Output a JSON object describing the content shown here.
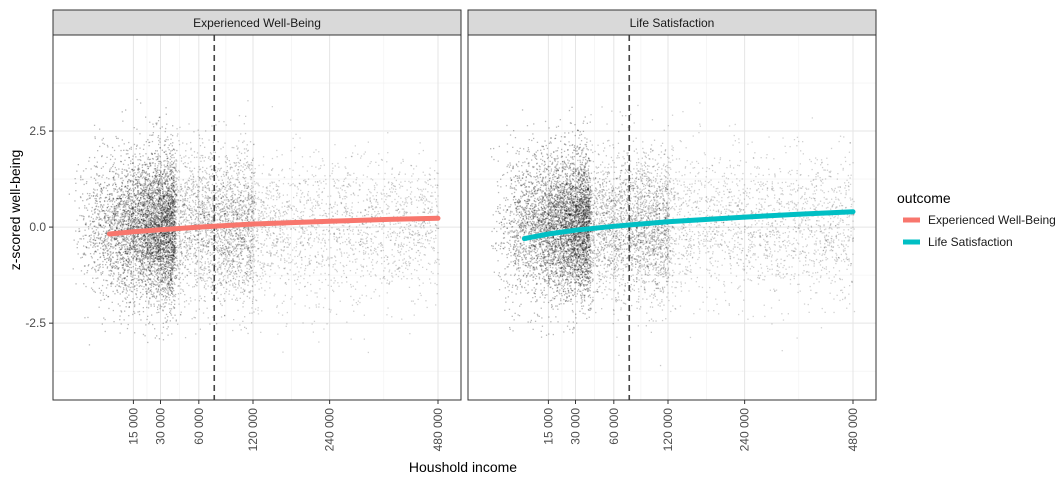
{
  "chart_data": {
    "type": "scatter",
    "facets": [
      "Experienced Well-Being",
      "Life Satisfaction"
    ],
    "xlabel": "Houshold income",
    "ylabel": "z-scored well-being",
    "x_ticks": [
      15000,
      30000,
      60000,
      120000,
      240000,
      480000
    ],
    "x_tick_labels": [
      "15 000",
      "30 000",
      "60 000",
      "120 000",
      "240 000",
      "480 000"
    ],
    "x_scale": "sqrt",
    "xlim": [
      0,
      510000
    ],
    "y_ticks": [
      -2.5,
      0.0,
      2.5
    ],
    "y_tick_labels": [
      "-2.5",
      "0.0",
      "2.5"
    ],
    "ylim": [
      -4.5,
      5
    ],
    "reference_line_x": 75000,
    "grid": true,
    "legend": {
      "title": "outcome",
      "placement": "right"
    },
    "series": [
      {
        "name": "Experienced Well-Being",
        "color": "#F8766D",
        "x": [
          6000,
          15000,
          30000,
          60000,
          120000,
          240000,
          360000,
          480000
        ],
        "y": [
          -0.18,
          -0.12,
          -0.07,
          0.0,
          0.08,
          0.15,
          0.2,
          0.23
        ]
      },
      {
        "name": "Life Satisfaction",
        "color": "#00BFC4",
        "x": [
          6000,
          15000,
          30000,
          60000,
          120000,
          240000,
          360000,
          480000
        ],
        "y": [
          -0.3,
          -0.18,
          -0.08,
          0.02,
          0.14,
          0.26,
          0.34,
          0.4
        ]
      }
    ],
    "point_cloud": {
      "color": "#000000",
      "note_values": "individual respondents, y spread approx. -3.5 to 4.0, densest below 60 000"
    }
  }
}
